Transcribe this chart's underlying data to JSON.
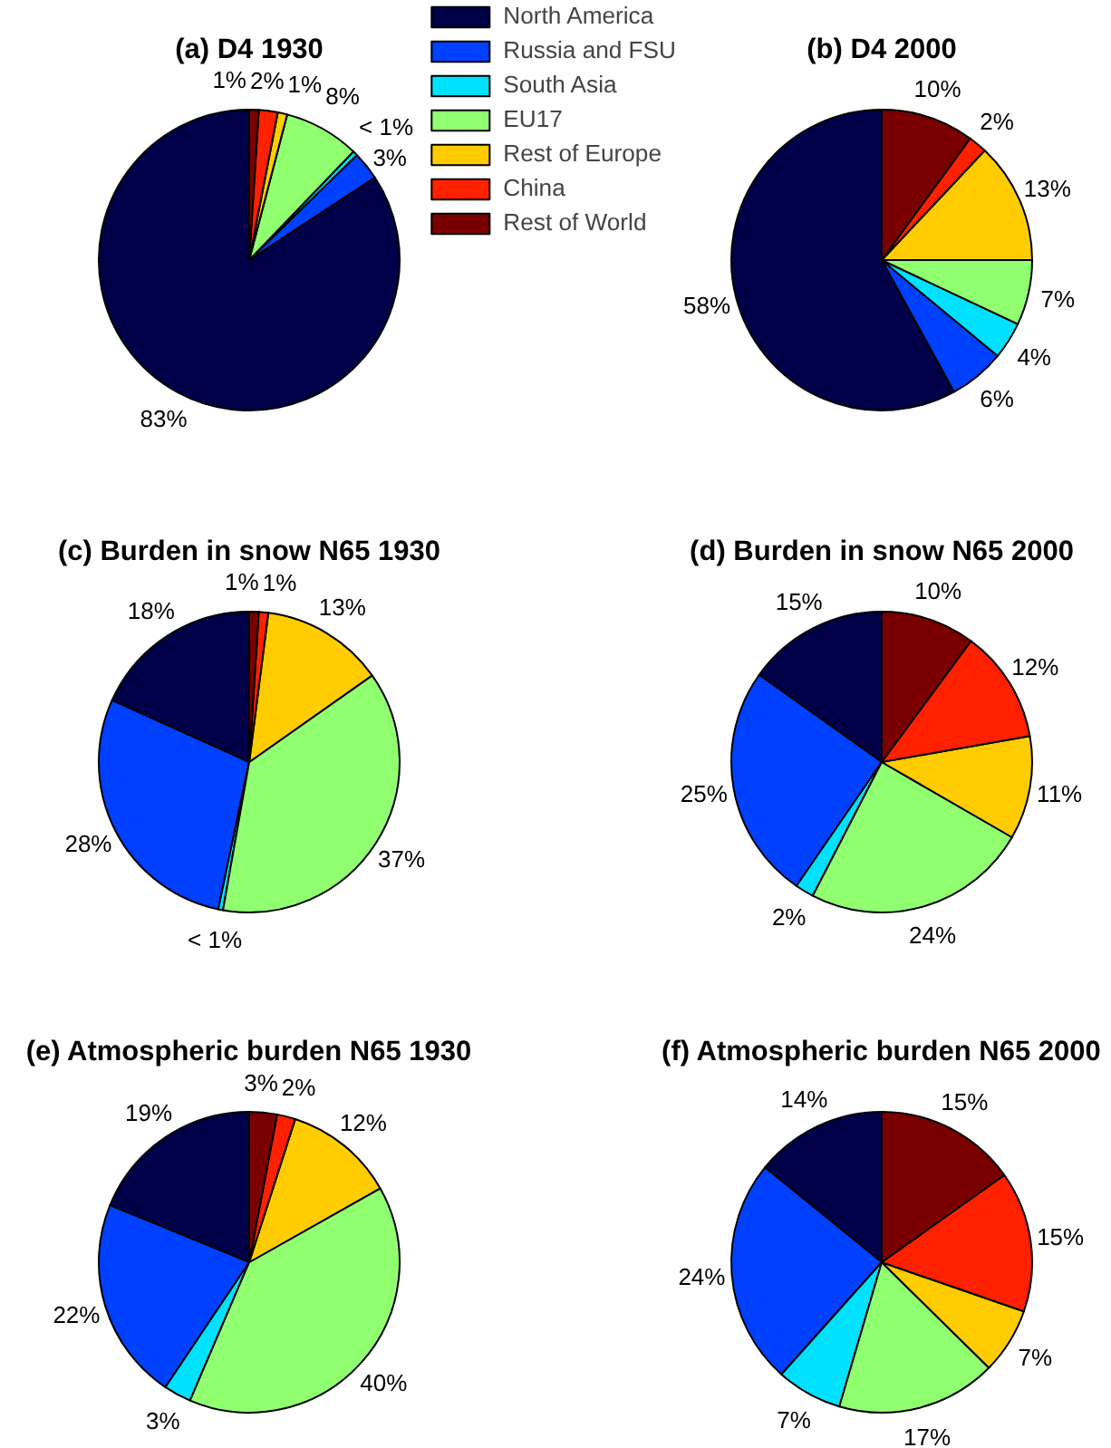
{
  "chart_data": [
    {
      "type": "pie",
      "title": "(a) D4 1930",
      "categories": [
        "North America",
        "Russia and FSU",
        "South Asia",
        "EU17",
        "Rest of Europe",
        "China",
        "Rest of World"
      ],
      "values": [
        83,
        3,
        0.5,
        8,
        1,
        2,
        1
      ],
      "colors": [
        "#000048",
        "#0040ff",
        "#00e0ff",
        "#90ff70",
        "#ffcc00",
        "#ff2000",
        "#7a0000"
      ],
      "value_labels": [
        "83%",
        "3%",
        "< 1%",
        "8%",
        "1%",
        "2%",
        "1%"
      ],
      "legend": "top right"
    },
    {
      "type": "pie",
      "title": "(b) D4 2000",
      "categories": [
        null,
        null,
        null,
        null,
        null,
        null,
        null
      ],
      "values": [
        58,
        6,
        4,
        7,
        13,
        2,
        10
      ],
      "colors": [
        "#000048",
        "#0040ff",
        "#00e0ff",
        "#90ff70",
        "#ffcc00",
        "#ff2000",
        "#7a0000"
      ],
      "value_labels": [
        "58%",
        "6%",
        "4%",
        "7%",
        "13%",
        "2%",
        "10%"
      ]
    },
    {
      "type": "pie",
      "title": "(c) Burden in snow N65 1930",
      "categories": [
        null,
        null,
        null,
        null,
        null,
        null,
        null
      ],
      "values": [
        18,
        28,
        0.5,
        37,
        13,
        1,
        1
      ],
      "colors": [
        "#000048",
        "#0040ff",
        "#00e0ff",
        "#90ff70",
        "#ffcc00",
        "#ff2000",
        "#7a0000"
      ],
      "value_labels": [
        "18%",
        "28%",
        "< 1%",
        "37%",
        "13%",
        "1%",
        "1%"
      ]
    },
    {
      "type": "pie",
      "title": "(d) Burden in snow N65 2000",
      "categories": [
        null,
        null,
        null,
        null,
        null,
        null,
        null
      ],
      "values": [
        15,
        25,
        2,
        24,
        11,
        12,
        10
      ],
      "colors": [
        "#000048",
        "#0040ff",
        "#00e0ff",
        "#90ff70",
        "#ffcc00",
        "#ff2000",
        "#7a0000"
      ],
      "value_labels": [
        "15%",
        "25%",
        "2%",
        "24%",
        "11%",
        "12%",
        "10%"
      ]
    },
    {
      "type": "pie",
      "title": "(e) Atmospheric burden N65 1930",
      "categories": [
        null,
        null,
        null,
        null,
        null,
        null,
        null
      ],
      "values": [
        19,
        22,
        3,
        40,
        12,
        2,
        3
      ],
      "colors": [
        "#000048",
        "#0040ff",
        "#00e0ff",
        "#90ff70",
        "#ffcc00",
        "#ff2000",
        "#7a0000"
      ],
      "value_labels": [
        "19%",
        "22%",
        "3%",
        "40%",
        "12%",
        "2%",
        "3%"
      ]
    },
    {
      "type": "pie",
      "title": "(f) Atmospheric burden N65 2000",
      "categories": [
        null,
        null,
        null,
        null,
        null,
        null,
        null
      ],
      "values": [
        14,
        24,
        7,
        17,
        7,
        15,
        15
      ],
      "colors": [
        "#000048",
        "#0040ff",
        "#00e0ff",
        "#90ff70",
        "#ffcc00",
        "#ff2000",
        "#7a0000"
      ],
      "value_labels": [
        "14%",
        "24%",
        "7%",
        "17%",
        "7%",
        "15%",
        "15%"
      ]
    }
  ]
}
